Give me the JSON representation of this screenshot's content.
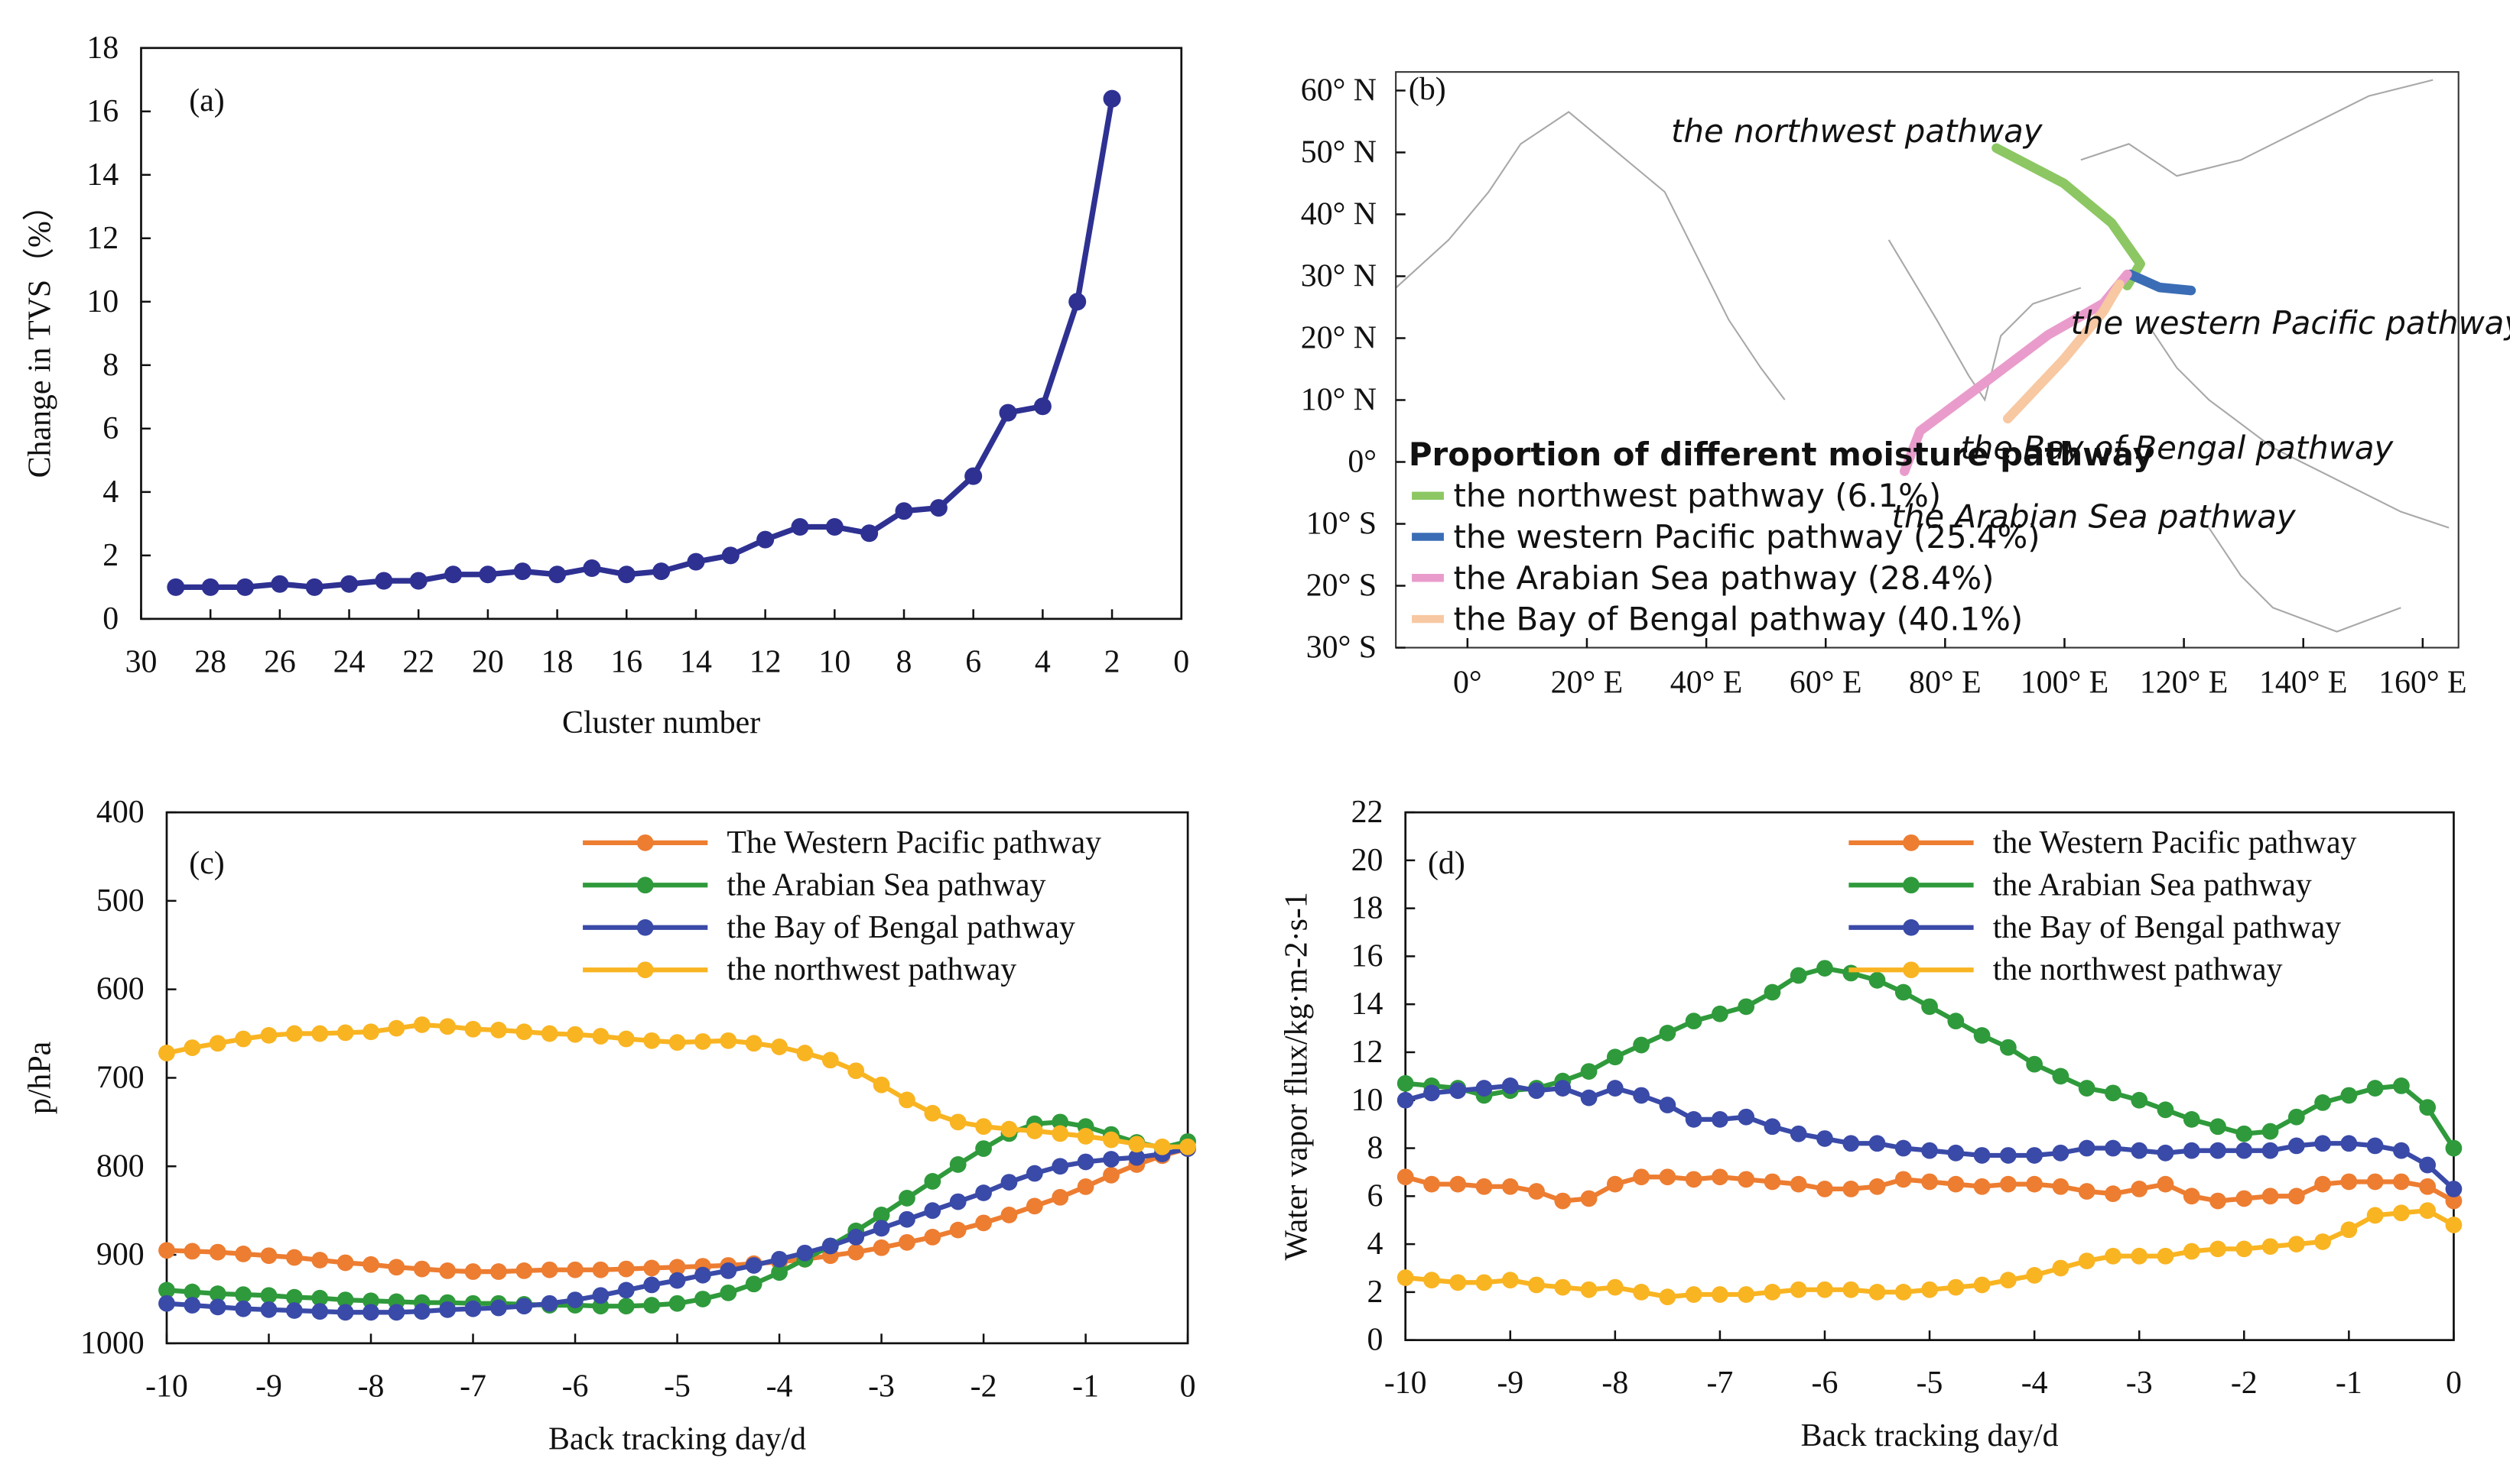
{
  "chart_data": [
    {
      "type": "line",
      "label": "(a)",
      "xlabel": "Cluster number",
      "ylabel": "Change in TVS（%）",
      "xlim": [
        30,
        0
      ],
      "xticks": [
        30,
        28,
        26,
        24,
        22,
        20,
        18,
        16,
        14,
        12,
        10,
        8,
        6,
        4,
        2,
        0
      ],
      "ylim": [
        0,
        18
      ],
      "yticks": [
        0,
        2,
        4,
        6,
        8,
        10,
        12,
        14,
        16,
        18
      ],
      "x": [
        29,
        28,
        27,
        26,
        25,
        24,
        23,
        22,
        21,
        20,
        19,
        18,
        17,
        16,
        15,
        14,
        13,
        12,
        11,
        10,
        9,
        8,
        7,
        6,
        5,
        4,
        3,
        2
      ],
      "series": [
        {
          "color": "#2e3192",
          "values": [
            1.0,
            1.0,
            1.0,
            1.1,
            1.0,
            1.1,
            1.2,
            1.2,
            1.4,
            1.4,
            1.5,
            1.4,
            1.6,
            1.4,
            1.5,
            1.8,
            2.0,
            2.5,
            2.9,
            2.9,
            2.7,
            3.4,
            3.5,
            4.5,
            6.5,
            6.7,
            10.0,
            16.4
          ]
        }
      ]
    },
    {
      "type": "map",
      "label": "(b)",
      "xlim": [
        -12,
        166
      ],
      "xticks": [
        {
          "value": 0,
          "label": "0°"
        },
        {
          "value": 20,
          "label": "20° E"
        },
        {
          "value": 40,
          "label": "40° E"
        },
        {
          "value": 60,
          "label": "60° E"
        },
        {
          "value": 80,
          "label": "80° E"
        },
        {
          "value": 100,
          "label": "100° E"
        },
        {
          "value": 120,
          "label": "120° E"
        },
        {
          "value": 140,
          "label": "140° E"
        },
        {
          "value": 160,
          "label": "160° E"
        }
      ],
      "ylim": [
        -30,
        63
      ],
      "yticks": [
        {
          "value": 60,
          "label": "60° N"
        },
        {
          "value": 50,
          "label": "50° N"
        },
        {
          "value": 40,
          "label": "40° N"
        },
        {
          "value": 30,
          "label": "30° N"
        },
        {
          "value": 20,
          "label": "20° N"
        },
        {
          "value": 10,
          "label": "10° N"
        },
        {
          "value": 0,
          "label": "0°"
        },
        {
          "value": -10,
          "label": "10° S"
        },
        {
          "value": -20,
          "label": "20° S"
        },
        {
          "value": -30,
          "label": "30° S"
        }
      ],
      "legend_title": "Proportion of different moisture pathway",
      "legend": "lower left",
      "annotations": [
        "the northwest pathway",
        "the western Pacific pathway",
        "the Bay of Bengal pathway",
        "the Arabian Sea pathway"
      ],
      "series": [
        {
          "name": "the northwest pathway (6.1%)",
          "color": "#8cc763",
          "x": [
            88.6,
            99.9,
            107.9,
            112.7,
            110.5
          ],
          "values": [
            50.7,
            45,
            38.6,
            32,
            28.5
          ]
        },
        {
          "name": "the western Pacific pathway (25.4%)",
          "color": "#3a6db5",
          "x": [
            111,
            115.9,
            121.2
          ],
          "values": [
            30.3,
            28.2,
            27.7
          ]
        },
        {
          "name": "the Arabian Sea pathway (28.4%)",
          "color": "#e99ccc",
          "x": [
            73.2,
            75.8,
            86.5,
            97.2,
            106.5,
            110.5
          ],
          "values": [
            -1.5,
            5,
            12.7,
            20.5,
            25.6,
            30.3
          ]
        },
        {
          "name": "the Bay of Bengal pathway (40.1%)",
          "color": "#f7c8a2",
          "x": [
            90.5,
            99.9,
            106.5,
            109.2
          ],
          "values": [
            7,
            16.6,
            24.3,
            28.7
          ]
        }
      ]
    },
    {
      "type": "line",
      "label": "(c)",
      "xlabel": "Back tracking day/d",
      "ylabel": "p/hPa",
      "legend": "upper right",
      "xlim": [
        -10,
        0
      ],
      "xticks": [
        -10,
        -9,
        -8,
        -7,
        -6,
        -5,
        -4,
        -3,
        -2,
        -1,
        0
      ],
      "ylim": [
        1000,
        400
      ],
      "yticks": [
        400,
        500,
        600,
        700,
        800,
        900,
        1000
      ],
      "x": [
        -10,
        -9.75,
        -9.5,
        -9.25,
        -9,
        -8.75,
        -8.5,
        -8.25,
        -8,
        -7.75,
        -7.5,
        -7.25,
        -7,
        -6.75,
        -6.5,
        -6.25,
        -6,
        -5.75,
        -5.5,
        -5.25,
        -5,
        -4.75,
        -4.5,
        -4.25,
        -4,
        -3.75,
        -3.5,
        -3.25,
        -3,
        -2.75,
        -2.5,
        -2.25,
        -2,
        -1.75,
        -1.5,
        -1.25,
        -1,
        -0.75,
        -0.5,
        -0.25,
        0
      ],
      "series": [
        {
          "name": "The Western Pacific pathway",
          "color": "#ed7d31",
          "values": [
            895,
            896,
            897,
            899,
            901,
            903,
            906,
            909,
            911,
            914,
            916,
            918,
            919,
            919,
            918,
            917,
            917,
            917,
            916,
            915,
            914,
            913,
            912,
            910,
            908,
            905,
            901,
            897,
            892,
            886,
            880,
            872,
            864,
            855,
            845,
            835,
            823,
            810,
            798,
            788,
            780
          ]
        },
        {
          "name": "the Arabian Sea pathway",
          "color": "#2f9a3b",
          "values": [
            940,
            942,
            944,
            945,
            946,
            948,
            949,
            951,
            952,
            953,
            954,
            954,
            955,
            955,
            956,
            957,
            957,
            958,
            958,
            957,
            955,
            950,
            943,
            933,
            920,
            905,
            890,
            873,
            855,
            836,
            817,
            798,
            780,
            763,
            752,
            750,
            755,
            764,
            773,
            779,
            772
          ]
        },
        {
          "name": "the Bay of Bengal pathway",
          "color": "#3a4aa8",
          "values": [
            955,
            957,
            959,
            961,
            962,
            963,
            964,
            965,
            965,
            965,
            964,
            962,
            961,
            960,
            958,
            955,
            951,
            946,
            940,
            934,
            929,
            923,
            918,
            912,
            905,
            898,
            890,
            880,
            870,
            860,
            850,
            840,
            830,
            818,
            808,
            800,
            795,
            792,
            790,
            786,
            780
          ]
        },
        {
          "name": "the northwest pathway",
          "color": "#f9b422",
          "values": [
            672,
            666,
            661,
            656,
            652,
            650,
            650,
            649,
            648,
            644,
            640,
            642,
            645,
            646,
            648,
            650,
            651,
            653,
            656,
            658,
            660,
            659,
            658,
            661,
            665,
            672,
            680,
            692,
            708,
            725,
            740,
            750,
            755,
            758,
            760,
            763,
            766,
            770,
            775,
            778,
            778
          ]
        }
      ]
    },
    {
      "type": "line",
      "label": "(d)",
      "xlabel": "Back tracking day/d",
      "ylabel": "Water vapor flux/kg·m-2·s-1",
      "legend": "upper right",
      "xlim": [
        -10,
        0
      ],
      "xticks": [
        -10,
        -9,
        -8,
        -7,
        -6,
        -5,
        -4,
        -3,
        -2,
        -1,
        0
      ],
      "ylim": [
        0,
        22
      ],
      "yticks": [
        0,
        2,
        4,
        6,
        8,
        10,
        12,
        14,
        16,
        18,
        20,
        22
      ],
      "x": [
        -10,
        -9.75,
        -9.5,
        -9.25,
        -9,
        -8.75,
        -8.5,
        -8.25,
        -8,
        -7.75,
        -7.5,
        -7.25,
        -7,
        -6.75,
        -6.5,
        -6.25,
        -6,
        -5.75,
        -5.5,
        -5.25,
        -5,
        -4.75,
        -4.5,
        -4.25,
        -4,
        -3.75,
        -3.5,
        -3.25,
        -3,
        -2.75,
        -2.5,
        -2.25,
        -2,
        -1.75,
        -1.5,
        -1.25,
        -1,
        -0.75,
        -0.5,
        -0.25,
        0
      ],
      "series": [
        {
          "name": "the Western Pacific pathway",
          "color": "#ed7d31",
          "values": [
            6.8,
            6.5,
            6.5,
            6.4,
            6.4,
            6.2,
            5.8,
            5.9,
            6.5,
            6.8,
            6.8,
            6.7,
            6.8,
            6.7,
            6.6,
            6.5,
            6.3,
            6.3,
            6.4,
            6.7,
            6.6,
            6.5,
            6.4,
            6.5,
            6.5,
            6.4,
            6.2,
            6.1,
            6.3,
            6.5,
            6.0,
            5.8,
            5.9,
            6.0,
            6.0,
            6.5,
            6.6,
            6.6,
            6.6,
            6.4,
            5.8
          ]
        },
        {
          "name": "the Arabian Sea pathway",
          "color": "#2f9a3b",
          "values": [
            10.7,
            10.6,
            10.5,
            10.2,
            10.4,
            10.5,
            10.8,
            11.2,
            11.8,
            12.3,
            12.8,
            13.3,
            13.6,
            13.9,
            14.5,
            15.2,
            15.5,
            15.3,
            15.0,
            14.5,
            13.9,
            13.3,
            12.7,
            12.2,
            11.5,
            11.0,
            10.5,
            10.3,
            10.0,
            9.6,
            9.2,
            8.9,
            8.6,
            8.7,
            9.3,
            9.9,
            10.2,
            10.5,
            10.6,
            9.7,
            8.0
          ]
        },
        {
          "name": "the Bay of Bengal pathway",
          "color": "#3a4aa8",
          "values": [
            10.0,
            10.3,
            10.4,
            10.5,
            10.6,
            10.4,
            10.5,
            10.1,
            10.5,
            10.2,
            9.8,
            9.2,
            9.2,
            9.3,
            8.9,
            8.6,
            8.4,
            8.2,
            8.2,
            8.0,
            7.9,
            7.8,
            7.7,
            7.7,
            7.7,
            7.8,
            8.0,
            8.0,
            7.9,
            7.8,
            7.9,
            7.9,
            7.9,
            7.9,
            8.1,
            8.2,
            8.2,
            8.1,
            7.9,
            7.3,
            6.3
          ]
        },
        {
          "name": "the northwest pathway",
          "color": "#f9b422",
          "values": [
            2.6,
            2.5,
            2.4,
            2.4,
            2.5,
            2.3,
            2.2,
            2.1,
            2.2,
            2.0,
            1.8,
            1.9,
            1.9,
            1.9,
            2.0,
            2.1,
            2.1,
            2.1,
            2.0,
            2.0,
            2.1,
            2.2,
            2.3,
            2.5,
            2.7,
            3.0,
            3.3,
            3.5,
            3.5,
            3.5,
            3.7,
            3.8,
            3.8,
            3.9,
            4.0,
            4.1,
            4.6,
            5.2,
            5.3,
            5.4,
            4.8
          ]
        }
      ]
    }
  ]
}
